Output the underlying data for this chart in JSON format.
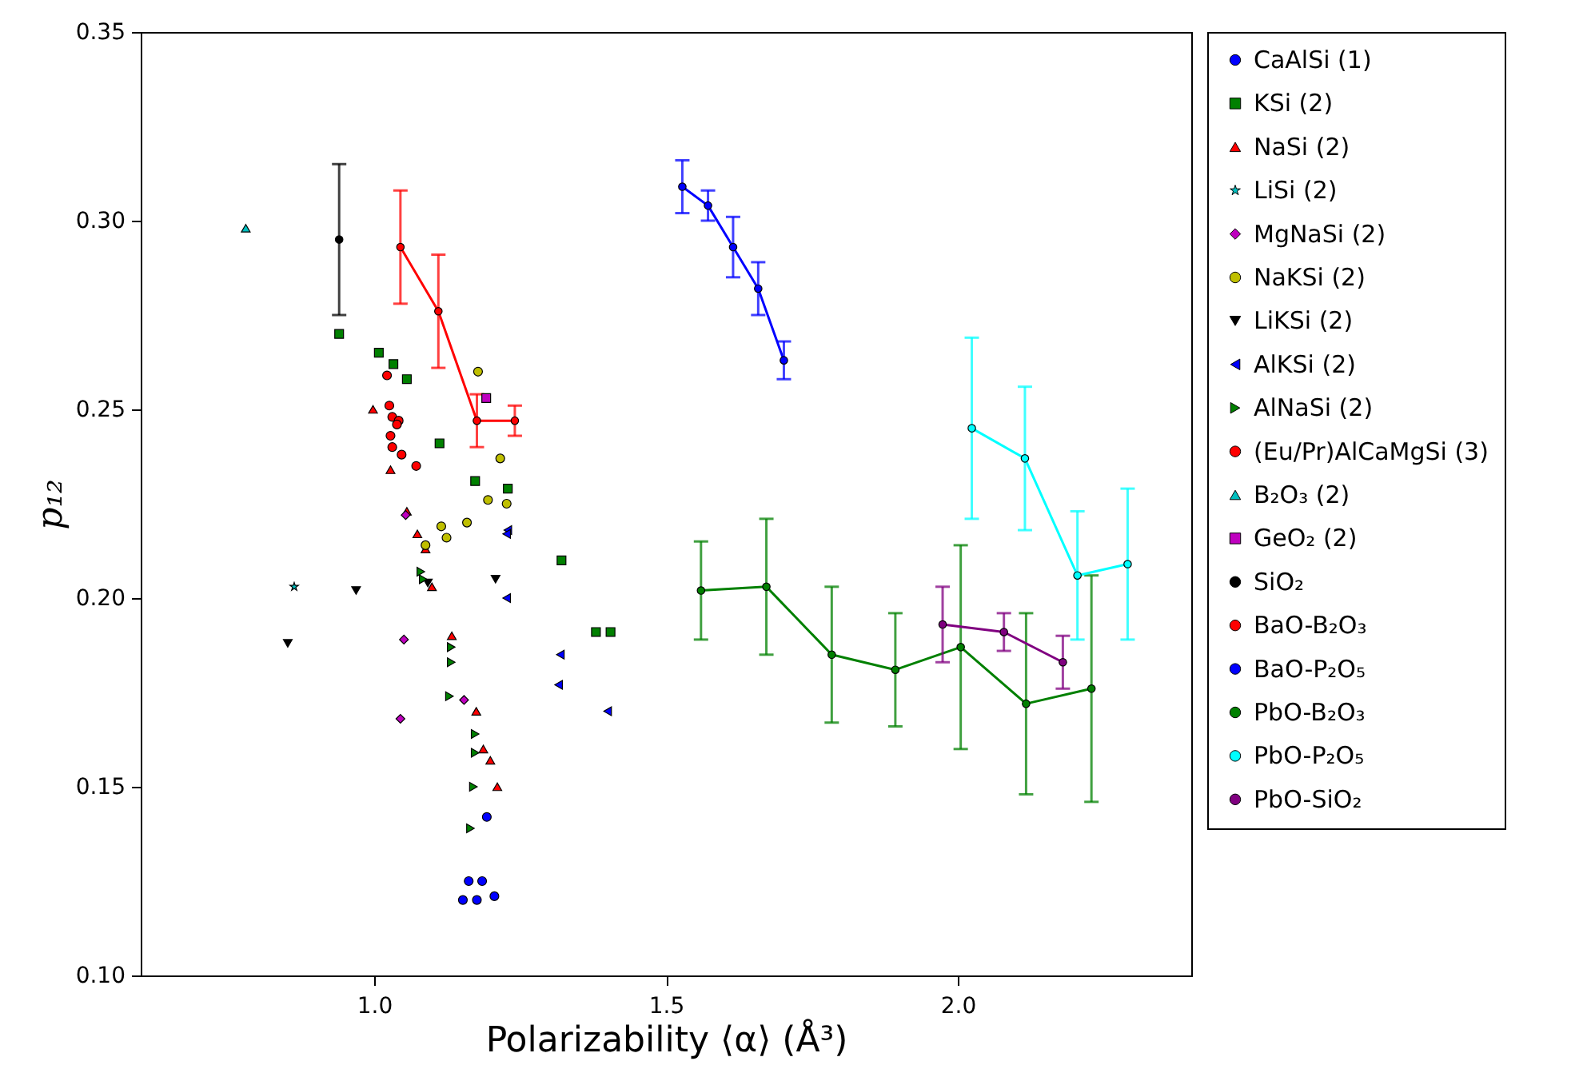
{
  "chart_data": {
    "type": "scatter",
    "xlabel": "Polarizability ⟨α⟩ (Å³)",
    "ylabel": "p₁₂",
    "xlim": [
      0.6,
      2.4
    ],
    "ylim": [
      0.1,
      0.35
    ],
    "xticks": [
      {
        "value": 1.0,
        "label": "1.0"
      },
      1.5,
      {
        "value": 2.0,
        "label": "2.0"
      }
    ],
    "yticks": [
      {
        "value": 0.1,
        "label": "0.10"
      },
      0.15,
      {
        "value": 0.2,
        "label": "0.20"
      },
      0.25,
      {
        "value": 0.3,
        "label": "0.30"
      },
      0.35
    ],
    "legend": "right",
    "series": [
      {
        "name": "CaAlSi (1)",
        "marker": "circle",
        "color": "#0000ff",
        "x": [
          1.193,
          1.162,
          1.185,
          1.152,
          1.176,
          1.206
        ],
        "values": [
          0.142,
          0.125,
          0.125,
          0.12,
          0.12,
          0.121
        ]
      },
      {
        "name": "KSi (2)",
        "marker": "square",
        "color": "#008000",
        "x": [
          0.94,
          1.008,
          1.033,
          1.056,
          1.112,
          1.173,
          1.229,
          1.321,
          1.38,
          1.405
        ],
        "values": [
          0.27,
          0.265,
          0.262,
          0.258,
          0.241,
          0.231,
          0.229,
          0.21,
          0.191,
          0.191
        ]
      },
      {
        "name": "NaSi (2)",
        "marker": "triangle",
        "color": "#ff0000",
        "x": [
          0.998,
          1.028,
          1.056,
          1.074,
          1.088,
          1.099,
          1.133,
          1.175,
          1.187,
          1.199,
          1.211
        ],
        "values": [
          0.25,
          0.234,
          0.223,
          0.217,
          0.213,
          0.203,
          0.19,
          0.17,
          0.16,
          0.157,
          0.15
        ]
      },
      {
        "name": "LiSi (2)",
        "marker": "star",
        "color": "#00bfbf",
        "x": [
          0.863
        ],
        "values": [
          0.203
        ]
      },
      {
        "name": "MgNaSi (2)",
        "marker": "diamond",
        "color": "#bf00bf",
        "x": [
          1.054,
          1.051,
          1.154,
          1.045
        ],
        "values": [
          0.222,
          0.189,
          0.173,
          0.168
        ]
      },
      {
        "name": "NaKSi (2)",
        "marker": "circle",
        "color": "#bfbf00",
        "x": [
          1.178,
          1.216,
          1.195,
          1.227,
          1.159,
          1.115,
          1.124,
          1.088
        ],
        "values": [
          0.26,
          0.237,
          0.226,
          0.225,
          0.22,
          0.219,
          0.216,
          0.214
        ]
      },
      {
        "name": "LiKSi (2)",
        "marker": "triangle-down",
        "color": "#000000",
        "x": [
          0.852,
          0.969,
          1.092,
          1.208
        ],
        "values": [
          0.188,
          0.202,
          0.204,
          0.205
        ]
      },
      {
        "name": "AlKSi (2)",
        "marker": "triangle-left",
        "color": "#0000ff",
        "x": [
          1.229,
          1.227,
          1.227,
          1.319,
          1.316,
          1.4
        ],
        "values": [
          0.218,
          0.217,
          0.2,
          0.185,
          0.177,
          0.17
        ]
      },
      {
        "name": "AlNaSi (2)",
        "marker": "triangle-right",
        "color": "#008000",
        "x": [
          1.08,
          1.084,
          1.132,
          1.132,
          1.129,
          1.173,
          1.173,
          1.17,
          1.165
        ],
        "values": [
          0.207,
          0.205,
          0.187,
          0.183,
          0.174,
          0.164,
          0.159,
          0.15,
          0.139
        ]
      },
      {
        "name": "(Eu/Pr)AlCaMgSi (3)",
        "marker": "circle",
        "color": "#ff0000",
        "x": [
          1.022,
          1.026,
          1.031,
          1.042,
          1.039,
          1.028,
          1.031,
          1.047,
          1.072
        ],
        "values": [
          0.259,
          0.251,
          0.248,
          0.247,
          0.246,
          0.243,
          0.24,
          0.238,
          0.235
        ]
      },
      {
        "name": "B₂O₃ (2)",
        "marker": "triangle",
        "color": "#00bfbf",
        "x": [
          0.78
        ],
        "values": [
          0.298
        ]
      },
      {
        "name": "GeO₂ (2)",
        "marker": "square",
        "color": "#bf00bf",
        "x": [
          1.192
        ],
        "values": [
          0.253
        ]
      },
      {
        "name": "SiO₂",
        "type": "line",
        "marker": "circle",
        "color": "#000000",
        "x": [
          0.94
        ],
        "values": [
          0.295
        ],
        "errors": [
          0.02
        ]
      },
      {
        "name": "BaO-B₂O₃",
        "type": "line",
        "marker": "circle",
        "color": "#ff0000",
        "x": [
          1.045,
          1.11,
          1.176,
          1.241
        ],
        "values": [
          0.293,
          0.276,
          0.247,
          0.247
        ],
        "errors": [
          0.015,
          0.015,
          0.007,
          0.004
        ]
      },
      {
        "name": "BaO-P₂O₅",
        "type": "line",
        "marker": "circle",
        "color": "#0000ff",
        "x": [
          1.528,
          1.572,
          1.615,
          1.658,
          1.702
        ],
        "values": [
          0.309,
          0.304,
          0.293,
          0.282,
          0.263
        ],
        "errors": [
          0.007,
          0.004,
          0.008,
          0.007,
          0.005
        ]
      },
      {
        "name": "PbO-B₂O₃",
        "type": "line",
        "marker": "circle",
        "color": "#008000",
        "x": [
          1.56,
          1.672,
          1.784,
          1.893,
          2.005,
          2.117,
          2.229
        ],
        "values": [
          0.202,
          0.203,
          0.185,
          0.181,
          0.187,
          0.172,
          0.176
        ],
        "errors": [
          0.013,
          0.018,
          0.018,
          0.015,
          0.027,
          0.024,
          0.03
        ]
      },
      {
        "name": "PbO-P₂O₅",
        "type": "line",
        "marker": "circle",
        "color": "#00ffff",
        "x": [
          2.024,
          2.115,
          2.205,
          2.291
        ],
        "values": [
          0.245,
          0.237,
          0.206,
          0.209
        ],
        "errors": [
          0.024,
          0.019,
          0.017,
          0.02
        ]
      },
      {
        "name": "PbO-SiO₂",
        "type": "line",
        "marker": "circle",
        "color": "#800080",
        "x": [
          1.974,
          2.079,
          2.18
        ],
        "values": [
          0.193,
          0.191,
          0.183
        ],
        "errors": [
          0.01,
          0.005,
          0.007
        ]
      }
    ]
  }
}
